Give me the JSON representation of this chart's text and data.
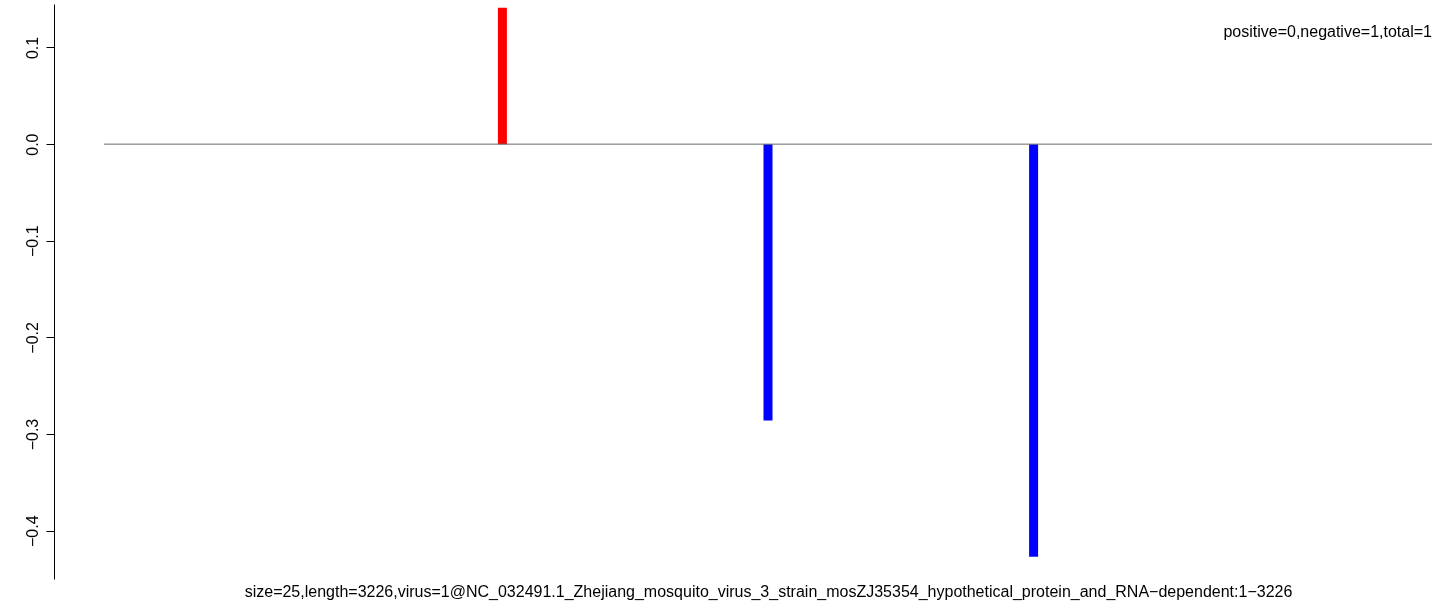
{
  "chart_data": {
    "type": "bar",
    "xlabel": "size=25,length=3226,virus=1@NC_032491.1_Zhejiang_mosquito_virus_3_strain_mosZJ35354_hypothetical_protein_and_RNA−dependent:1−3226",
    "annotations": [
      "positive=0,negative=1,total=1"
    ],
    "categories": [
      null,
      null,
      null
    ],
    "values": [
      0.141,
      -0.286,
      -0.427
    ],
    "colors": [
      "#ff0000",
      "#0000ff",
      "#0000ff"
    ],
    "ylim": [
      -0.45,
      0.145
    ],
    "yticks": [
      {
        "value": -0.4,
        "label": "−0.4"
      },
      {
        "value": -0.3,
        "label": "−0.3"
      },
      {
        "value": -0.2,
        "label": "−0.2"
      },
      {
        "value": -0.1,
        "label": "−0.1"
      },
      {
        "value": 0,
        "label": "0.0"
      },
      {
        "value": 0.1,
        "label": "0.1"
      }
    ],
    "ref_lines": [
      {
        "axis": "y",
        "value": 0,
        "color": "#666666"
      }
    ],
    "grid": false
  }
}
